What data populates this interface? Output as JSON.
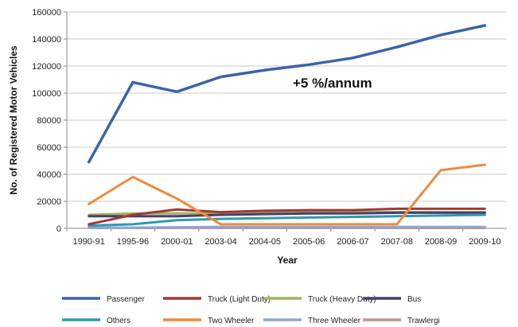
{
  "chart_data": {
    "type": "line",
    "ylabel": "No. of Registered Motor Vehicles",
    "xlabel": "Year",
    "annotation": "+5 %/annum",
    "ylim": [
      0,
      160000
    ],
    "yticks": [
      0,
      20000,
      40000,
      60000,
      80000,
      100000,
      120000,
      140000,
      160000
    ],
    "grid": "horizontal",
    "legend_position": "bottom",
    "categories": [
      "1990-91",
      "1995-96",
      "2000-01",
      "2003-04",
      "2004-05",
      "2005-06",
      "2006-07",
      "2007-08",
      "2008-09",
      "2009-10"
    ],
    "series": [
      {
        "name": "Passenger",
        "color": "#3a64a6",
        "values": [
          49000,
          108000,
          101000,
          112000,
          117000,
          121000,
          126000,
          134000,
          143000,
          150000
        ]
      },
      {
        "name": "Truck (Light Duty)",
        "color": "#9e3a38",
        "values": [
          3000,
          10000,
          14000,
          12000,
          13000,
          13500,
          13500,
          14500,
          14500,
          14500
        ]
      },
      {
        "name": "Truck (Heavy Duty)",
        "color": "#9bb55a",
        "values": [
          10000,
          11000,
          11000,
          11000,
          11500,
          12000,
          12000,
          12000,
          12000,
          12000
        ]
      },
      {
        "name": "Bus",
        "color": "#4c3c6e",
        "values": [
          9000,
          9000,
          9000,
          10000,
          10500,
          11000,
          11000,
          11500,
          11500,
          11500
        ]
      },
      {
        "name": "Others",
        "color": "#2f99b0",
        "values": [
          2000,
          3000,
          6000,
          7000,
          7500,
          8000,
          8500,
          9000,
          9500,
          10000
        ]
      },
      {
        "name": "Two Wheeler",
        "color": "#f08a3c",
        "values": [
          18000,
          38000,
          22000,
          3000,
          3000,
          3000,
          3000,
          3000,
          43000,
          47000
        ]
      },
      {
        "name": "Three Wheeler",
        "color": "#8ea6d4",
        "values": [
          500,
          500,
          800,
          1000,
          1000,
          1000,
          1000,
          1000,
          1000,
          1000
        ]
      },
      {
        "name": "Trawlergi",
        "color": "#c58f8c",
        "values": [
          300,
          300,
          300,
          300,
          300,
          300,
          300,
          300,
          300,
          300
        ]
      }
    ]
  }
}
